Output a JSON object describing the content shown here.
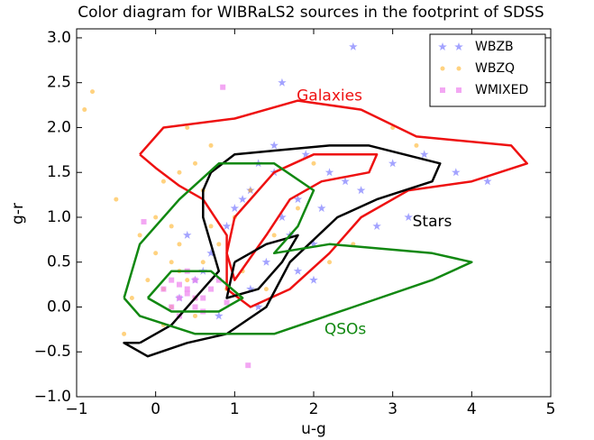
{
  "chart_data": {
    "type": "scatter",
    "title": "Color diagram for WIBRaLS2 sources in the footprint of SDSS",
    "x_label": "u-g",
    "y_label": "g-r",
    "xlim": [
      -1,
      5
    ],
    "ylim": [
      -1.0,
      3.1
    ],
    "xticks": [
      {
        "value": -1,
        "label": "−1"
      },
      0,
      1,
      2,
      3,
      4,
      5
    ],
    "yticks": [
      {
        "value": -1.0,
        "label": "−1.0"
      },
      {
        "value": -0.5,
        "label": "−0.5"
      },
      {
        "value": 0.0,
        "label": "0.0"
      },
      {
        "value": 0.5,
        "label": "0.5"
      },
      {
        "value": 1.0,
        "label": "1.0"
      },
      {
        "value": 1.5,
        "label": "1.5"
      },
      {
        "value": 2.0,
        "label": "2.0"
      },
      {
        "value": 2.5,
        "label": "2.5"
      },
      {
        "value": 3.0,
        "label": "3.0"
      }
    ],
    "legend": "upper right",
    "series": [
      {
        "name": "WBZB",
        "color": "#3333ff",
        "marker": "star",
        "x": [
          1.2,
          1.5,
          1.8,
          2.1,
          0.9,
          1.3,
          1.6,
          2.4,
          2.0,
          1.1,
          0.7,
          1.9,
          2.6,
          3.0,
          1.4,
          1.7,
          0.5,
          2.2,
          3.4,
          3.8,
          1.0,
          1.5,
          2.8,
          0.3,
          0.6,
          1.2,
          1.8,
          4.2,
          2.5,
          0.8,
          1.3,
          2.0,
          1.6,
          0.4,
          3.2
        ],
        "values": [
          1.3,
          1.5,
          1.2,
          1.1,
          0.9,
          1.6,
          1.0,
          1.4,
          0.7,
          1.2,
          0.6,
          1.7,
          1.3,
          1.6,
          0.5,
          0.8,
          0.3,
          1.5,
          1.7,
          1.5,
          1.1,
          1.8,
          0.9,
          0.1,
          0.4,
          0.2,
          0.4,
          1.4,
          2.9,
          -0.1,
          0.0,
          0.3,
          2.5,
          0.8,
          1.0
        ]
      },
      {
        "name": "WBZQ",
        "color": "#ffa500",
        "marker": "circle",
        "x": [
          0.1,
          0.3,
          -0.2,
          0.5,
          0.0,
          0.2,
          0.4,
          -0.5,
          0.6,
          0.8,
          1.0,
          0.2,
          -0.1,
          0.3,
          0.7,
          1.2,
          -0.8,
          0.1,
          0.5,
          0.9,
          1.5,
          2.0,
          -0.3,
          0.4,
          0.0,
          0.6,
          2.5,
          -0.9,
          0.2,
          1.1,
          1.8,
          3.0,
          0.3,
          -0.4,
          0.5,
          1.4,
          2.2,
          0.7,
          0.1,
          3.3
        ],
        "values": [
          0.2,
          0.4,
          0.8,
          0.1,
          0.6,
          0.9,
          0.3,
          1.2,
          0.5,
          0.7,
          1.0,
          0.0,
          0.3,
          1.5,
          1.8,
          1.3,
          2.4,
          -0.2,
          -0.1,
          0.2,
          0.8,
          1.6,
          0.1,
          2.0,
          1.0,
          1.3,
          0.7,
          2.2,
          0.5,
          0.4,
          1.1,
          2.0,
          0.7,
          -0.3,
          1.6,
          0.2,
          0.5,
          0.9,
          1.4,
          1.8
        ]
      },
      {
        "name": "WMIXED",
        "color": "#ee82ee",
        "marker": "square",
        "x": [
          0.3,
          0.4,
          0.5,
          0.2,
          0.6,
          0.3,
          0.5,
          0.4,
          0.7,
          0.2,
          0.6,
          0.4,
          0.3,
          0.5,
          0.8,
          0.1,
          0.85,
          -0.15,
          1.17,
          0.9
        ],
        "values": [
          0.1,
          0.2,
          0.0,
          0.3,
          0.1,
          -0.1,
          0.3,
          0.4,
          0.2,
          0.0,
          -0.05,
          0.15,
          0.25,
          0.1,
          0.3,
          0.2,
          2.45,
          0.95,
          -0.65,
          0.05
        ]
      }
    ],
    "contours": [
      {
        "color": "#ee1111",
        "x": [
          -0.2,
          0.1,
          1.0,
          1.8,
          2.6,
          3.3,
          4.5,
          4.7,
          4.0,
          3.2,
          2.6,
          2.2,
          1.7,
          1.2,
          0.9,
          0.9,
          0.6,
          0.3,
          0.0,
          -0.2
        ],
        "values": [
          1.7,
          2.0,
          2.1,
          2.3,
          2.2,
          1.9,
          1.8,
          1.6,
          1.4,
          1.3,
          1.0,
          0.6,
          0.2,
          0.0,
          0.2,
          0.8,
          1.2,
          1.35,
          1.55,
          1.7
        ]
      },
      {
        "color": "#ee1111",
        "x": [
          1.0,
          1.5,
          2.0,
          2.8,
          2.7,
          2.1,
          1.7,
          1.4,
          1.0,
          0.9,
          1.0
        ],
        "values": [
          1.0,
          1.5,
          1.7,
          1.7,
          1.5,
          1.4,
          1.2,
          0.8,
          0.3,
          0.6,
          1.0
        ]
      },
      {
        "color": "#000000",
        "x": [
          -0.2,
          0.2,
          0.8,
          0.6,
          0.6,
          0.7,
          1.0,
          1.6,
          2.2,
          2.7,
          3.6,
          3.5,
          2.8,
          2.3,
          1.7,
          1.4,
          0.9,
          0.4,
          -0.1,
          -0.4,
          -0.2
        ],
        "values": [
          -0.4,
          -0.2,
          0.4,
          1.0,
          1.3,
          1.5,
          1.7,
          1.75,
          1.8,
          1.8,
          1.6,
          1.4,
          1.2,
          1.0,
          0.5,
          0.0,
          -0.3,
          -0.4,
          -0.55,
          -0.4,
          -0.4
        ]
      },
      {
        "color": "#000000",
        "x": [
          1.0,
          1.4,
          1.8,
          1.6,
          1.3,
          0.9,
          1.0
        ],
        "values": [
          0.5,
          0.7,
          0.8,
          0.5,
          0.2,
          0.1,
          0.5
        ]
      },
      {
        "color": "#118811",
        "x": [
          -0.4,
          -0.2,
          0.3,
          0.8,
          1.5,
          2.0,
          1.8,
          1.5,
          2.2,
          3.5,
          4.0,
          3.5,
          2.5,
          1.5,
          0.5,
          -0.2,
          -0.4
        ],
        "values": [
          0.1,
          0.7,
          1.2,
          1.6,
          1.6,
          1.3,
          0.9,
          0.6,
          0.7,
          0.6,
          0.5,
          0.3,
          0.0,
          -0.3,
          -0.3,
          -0.1,
          0.1
        ]
      },
      {
        "color": "#118811",
        "x": [
          -0.1,
          0.2,
          0.7,
          1.1,
          0.8,
          0.2,
          -0.1
        ],
        "values": [
          0.1,
          0.4,
          0.4,
          0.1,
          -0.05,
          -0.05,
          0.1
        ]
      }
    ],
    "annotations": [
      {
        "text": "Galaxies",
        "x": 2.2,
        "y": 2.35,
        "color": "#ee1111"
      },
      {
        "text": "Stars",
        "x": 3.5,
        "y": 0.95,
        "color": "#000000"
      },
      {
        "text": "QSOs",
        "x": 2.4,
        "y": -0.25,
        "color": "#118811"
      }
    ]
  }
}
